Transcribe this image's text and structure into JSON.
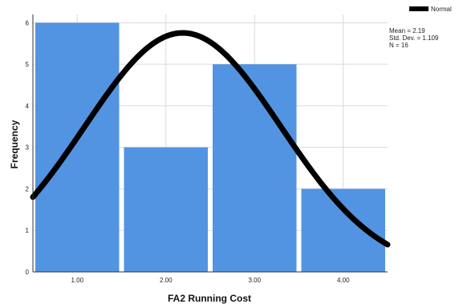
{
  "chart_data": {
    "type": "bar",
    "title": "",
    "xlabel": "FA2 Running Cost",
    "ylabel": "Frequency",
    "categories": [
      "1.00",
      "2.00",
      "3.00",
      "4.00"
    ],
    "values": [
      6,
      3,
      5,
      2
    ],
    "ylim": [
      0,
      6.2
    ],
    "yticks": [
      0,
      1,
      2,
      3,
      4,
      5,
      6
    ],
    "grid": true,
    "bar_color": "#5294e2",
    "curve_color": "#000000",
    "legend": {
      "placement": "top-right",
      "entries": [
        "Normal"
      ]
    },
    "normal_curve": {
      "mean": 2.19,
      "std": 1.109,
      "n": 16,
      "bin_width": 1
    },
    "stats": {
      "mean_label": "Mean = 2.19",
      "std_label": "Std. Dev. = 1.109",
      "n_label": "N = 16"
    }
  }
}
